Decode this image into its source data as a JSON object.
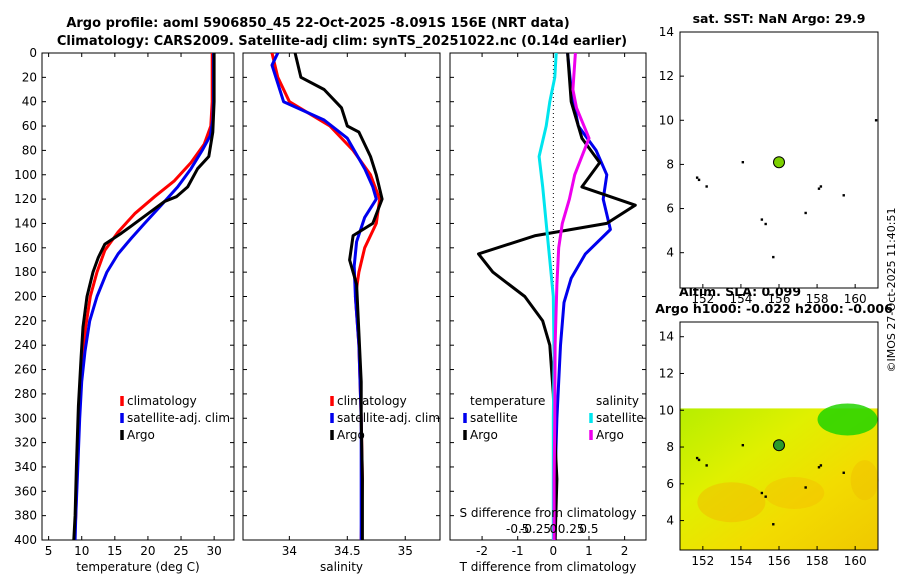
{
  "header": {
    "title_line1": "Argo profile: aoml 5906850_45 22-Oct-2025 -8.091S 156E (NRT data)",
    "title_line2": "Climatology: CARS2009. Satellite-adj clim: synTS_20251022.nc (0.14d earlier)",
    "timestamp": "©IMOS 27-Oct-2025 11:40:51"
  },
  "colors": {
    "climatology": "#ff0000",
    "satellite": "#0000ee",
    "argo": "#000000",
    "sal_satellite": "#00e5ee",
    "sal_argo": "#ee00ee"
  },
  "chart_data": [
    {
      "id": "temp",
      "type": "line",
      "xlabel": "temperature (deg C)",
      "ylabel": "",
      "xlim": [
        4,
        33
      ],
      "ylim": [
        0,
        400
      ],
      "xticks": [
        "5",
        "10",
        "15",
        "20",
        "25",
        "30"
      ],
      "xtick_values": [
        5,
        10,
        15,
        20,
        25,
        30
      ],
      "ytick_values": [
        0,
        20,
        40,
        60,
        80,
        100,
        120,
        140,
        160,
        180,
        200,
        220,
        240,
        260,
        280,
        300,
        320,
        340,
        360,
        380,
        400
      ],
      "yticks": [
        "0",
        "20",
        "40",
        "60",
        "80",
        "100",
        "120",
        "140",
        "160",
        "180",
        "200",
        "220",
        "240",
        "260",
        "280",
        "300",
        "320",
        "340",
        "360",
        "380",
        "400"
      ],
      "legend": [
        "climatology",
        "satellite-adj. clim",
        "Argo"
      ],
      "series": [
        {
          "name": "climatology",
          "color": "#ff0000",
          "points": [
            [
              29.7,
              0
            ],
            [
              29.7,
              40
            ],
            [
              29.5,
              60
            ],
            [
              28.5,
              75
            ],
            [
              26.5,
              90
            ],
            [
              24,
              105
            ],
            [
              21,
              118
            ],
            [
              18,
              132
            ],
            [
              15.5,
              147
            ],
            [
              13.5,
              162
            ],
            [
              12.3,
              180
            ],
            [
              11.3,
              200
            ],
            [
              10.6,
              225
            ],
            [
              10,
              260
            ],
            [
              9.6,
              300
            ],
            [
              9.3,
              340
            ],
            [
              9.1,
              380
            ],
            [
              8.9,
              400
            ]
          ]
        },
        {
          "name": "satellite-adj. clim",
          "color": "#0000ee",
          "points": [
            [
              29.9,
              0
            ],
            [
              29.9,
              40
            ],
            [
              29.8,
              55
            ],
            [
              29.4,
              68
            ],
            [
              28.2,
              80
            ],
            [
              26.5,
              95
            ],
            [
              24.5,
              110
            ],
            [
              22,
              125
            ],
            [
              19.5,
              140
            ],
            [
              17.5,
              152
            ],
            [
              15.5,
              165
            ],
            [
              13.8,
              180
            ],
            [
              12.3,
              200
            ],
            [
              11.2,
              220
            ],
            [
              10.5,
              245
            ],
            [
              10,
              270
            ],
            [
              9.7,
              300
            ],
            [
              9.4,
              340
            ],
            [
              9.1,
              380
            ],
            [
              9,
              400
            ]
          ]
        },
        {
          "name": "Argo",
          "color": "#000000",
          "points": [
            [
              30,
              0
            ],
            [
              30,
              40
            ],
            [
              29.8,
              65
            ],
            [
              29.2,
              85
            ],
            [
              27.5,
              95
            ],
            [
              26,
              110
            ],
            [
              24.3,
              118
            ],
            [
              22.5,
              122
            ],
            [
              20.5,
              130
            ],
            [
              17.5,
              142
            ],
            [
              16,
              148
            ],
            [
              13.5,
              157
            ],
            [
              12.5,
              168
            ],
            [
              11.7,
              180
            ],
            [
              10.8,
              200
            ],
            [
              10.2,
              225
            ],
            [
              9.9,
              250
            ],
            [
              9.5,
              290
            ],
            [
              9.2,
              340
            ],
            [
              9,
              380
            ],
            [
              8.8,
              400
            ]
          ]
        }
      ]
    },
    {
      "id": "sal",
      "type": "line",
      "xlabel": "salinity",
      "ylabel": "",
      "xlim": [
        33.6,
        35.3
      ],
      "ylim": [
        0,
        400
      ],
      "xticks": [
        "34",
        "34.5",
        "35"
      ],
      "xtick_values": [
        34,
        34.5,
        35
      ],
      "legend": [
        "climatology",
        "satellite-adj. clim",
        "Argo"
      ],
      "series": [
        {
          "name": "climatology",
          "color": "#ff0000",
          "points": [
            [
              33.85,
              0
            ],
            [
              33.9,
              20
            ],
            [
              34,
              40
            ],
            [
              34.35,
              60
            ],
            [
              34.55,
              80
            ],
            [
              34.7,
              100
            ],
            [
              34.78,
              120
            ],
            [
              34.75,
              140
            ],
            [
              34.65,
              160
            ],
            [
              34.6,
              180
            ],
            [
              34.57,
              200
            ],
            [
              34.6,
              240
            ],
            [
              34.62,
              300
            ],
            [
              34.63,
              350
            ],
            [
              34.62,
              400
            ]
          ]
        },
        {
          "name": "satellite-adj. clim",
          "color": "#0000ee",
          "points": [
            [
              33.9,
              0
            ],
            [
              33.85,
              10
            ],
            [
              33.95,
              40
            ],
            [
              34.3,
              55
            ],
            [
              34.5,
              70
            ],
            [
              34.65,
              95
            ],
            [
              34.72,
              110
            ],
            [
              34.75,
              120
            ],
            [
              34.65,
              135
            ],
            [
              34.58,
              155
            ],
            [
              34.56,
              175
            ],
            [
              34.57,
              200
            ],
            [
              34.6,
              240
            ],
            [
              34.62,
              300
            ],
            [
              34.62,
              350
            ],
            [
              34.62,
              400
            ]
          ]
        },
        {
          "name": "Argo",
          "color": "#000000",
          "points": [
            [
              34.05,
              0
            ],
            [
              34.1,
              20
            ],
            [
              34.3,
              30
            ],
            [
              34.45,
              45
            ],
            [
              34.5,
              60
            ],
            [
              34.6,
              65
            ],
            [
              34.7,
              85
            ],
            [
              34.75,
              100
            ],
            [
              34.8,
              120
            ],
            [
              34.72,
              140
            ],
            [
              34.55,
              150
            ],
            [
              34.52,
              170
            ],
            [
              34.58,
              190
            ],
            [
              34.6,
              230
            ],
            [
              34.62,
              270
            ],
            [
              34.62,
              300
            ],
            [
              34.63,
              350
            ],
            [
              34.63,
              400
            ]
          ]
        }
      ]
    },
    {
      "id": "diff",
      "type": "line",
      "xlabel": "T difference from climatology",
      "ylabel": "",
      "xlim": [
        -2.9,
        2.6
      ],
      "ylim": [
        0,
        400
      ],
      "xticks": [
        "-2",
        "-1",
        "0",
        "1",
        "2"
      ],
      "xtick_values": [
        -2,
        -1,
        0,
        1,
        2
      ],
      "top_xlabel": "S difference from climatology",
      "top_xticks": [
        "-0.5",
        "-0.25",
        "0",
        "0.25",
        "0.5"
      ],
      "top_xtick_values": [
        -1,
        -0.5,
        0,
        0.5,
        1
      ],
      "legend_temperature_title": "temperature",
      "legend_salinity_title": "salinity",
      "legend": [
        "satellite",
        "Argo",
        "satellite",
        "Argo"
      ],
      "series": [
        {
          "name": "temperature satellite",
          "color": "#0000ee",
          "points": [
            [
              0.4,
              0
            ],
            [
              0.5,
              30
            ],
            [
              0.7,
              60
            ],
            [
              1.2,
              80
            ],
            [
              1.5,
              100
            ],
            [
              1.4,
              120
            ],
            [
              1.6,
              145
            ],
            [
              0.9,
              165
            ],
            [
              0.5,
              185
            ],
            [
              0.3,
              205
            ],
            [
              0.2,
              240
            ],
            [
              0.1,
              300
            ],
            [
              0.05,
              350
            ],
            [
              0.05,
              400
            ]
          ]
        },
        {
          "name": "temperature Argo",
          "color": "#000000",
          "points": [
            [
              0.4,
              0
            ],
            [
              0.5,
              40
            ],
            [
              0.8,
              70
            ],
            [
              1.3,
              90
            ],
            [
              0.8,
              110
            ],
            [
              2.3,
              125
            ],
            [
              1.5,
              140
            ],
            [
              -0.5,
              150
            ],
            [
              -2.1,
              165
            ],
            [
              -1.7,
              180
            ],
            [
              -0.8,
              200
            ],
            [
              -0.3,
              220
            ],
            [
              -0.1,
              240
            ],
            [
              0,
              280
            ],
            [
              0.05,
              320
            ],
            [
              0.1,
              350
            ],
            [
              0.05,
              400
            ]
          ]
        },
        {
          "name": "salinity satellite",
          "color": "#00e5ee",
          "points": [
            [
              0.08,
              0
            ],
            [
              0.04,
              20
            ],
            [
              -0.1,
              40
            ],
            [
              -0.2,
              60
            ],
            [
              -0.4,
              85
            ],
            [
              -0.3,
              110
            ],
            [
              -0.2,
              140
            ],
            [
              -0.1,
              170
            ],
            [
              0.0,
              200
            ],
            [
              0.02,
              250
            ],
            [
              0.0,
              300
            ],
            [
              0.0,
              350
            ],
            [
              0.0,
              400
            ]
          ]
        },
        {
          "name": "salinity Argo",
          "color": "#ee00ee",
          "points": [
            [
              0.62,
              0
            ],
            [
              0.55,
              30
            ],
            [
              0.65,
              45
            ],
            [
              1.0,
              70
            ],
            [
              0.6,
              100
            ],
            [
              0.45,
              120
            ],
            [
              0.25,
              140
            ],
            [
              0.15,
              160
            ],
            [
              0.1,
              190
            ],
            [
              0.05,
              240
            ],
            [
              0.04,
              300
            ],
            [
              0.02,
              350
            ],
            [
              0.02,
              400
            ]
          ]
        }
      ]
    },
    {
      "id": "sst_map",
      "type": "scatter",
      "title": "sat. SST: NaN Argo: 29.9",
      "xlim": [
        150.8,
        161.2
      ],
      "ylim": [
        2.4,
        14
      ],
      "xticks": [
        "152",
        "154",
        "156",
        "158",
        "160"
      ],
      "xtick_values": [
        152,
        154,
        156,
        158,
        160
      ],
      "yticks": [
        "4",
        "6",
        "8",
        "10",
        "12",
        "14"
      ],
      "ytick_values": [
        4,
        6,
        8,
        10,
        12,
        14
      ],
      "argo_position": [
        156,
        8.1
      ],
      "island_points": [
        [
          151.7,
          7.4
        ],
        [
          151.8,
          7.3
        ],
        [
          152.2,
          7.0
        ],
        [
          154.1,
          8.1
        ],
        [
          155.3,
          5.3
        ],
        [
          155.1,
          5.5
        ],
        [
          155.7,
          3.8
        ],
        [
          157.4,
          5.8
        ],
        [
          158.1,
          6.9
        ],
        [
          158.2,
          7.0
        ],
        [
          159.4,
          6.6
        ],
        [
          161.1,
          10.0
        ]
      ]
    },
    {
      "id": "sla_map",
      "type": "heatmap",
      "title_line1": "Altim. SLA: 0.099",
      "title_line2": "Argo h1000: -0.022 h2000: -0.006",
      "xlim": [
        150.8,
        161.2
      ],
      "ylim": [
        2.4,
        14.8
      ],
      "data_top": 10.1,
      "xticks": [
        "152",
        "154",
        "156",
        "158",
        "160"
      ],
      "xtick_values": [
        152,
        154,
        156,
        158,
        160
      ],
      "yticks": [
        "4",
        "6",
        "8",
        "10",
        "12",
        "14"
      ],
      "ytick_values": [
        4,
        6,
        8,
        10,
        12,
        14
      ],
      "argo_position": [
        156,
        8.1
      ],
      "island_points": [
        [
          151.7,
          7.4
        ],
        [
          151.8,
          7.3
        ],
        [
          152.2,
          7.0
        ],
        [
          154.1,
          8.1
        ],
        [
          155.3,
          5.3
        ],
        [
          155.1,
          5.5
        ],
        [
          155.7,
          3.8
        ],
        [
          157.4,
          5.8
        ],
        [
          158.1,
          6.9
        ],
        [
          158.2,
          7.0
        ],
        [
          159.4,
          6.6
        ]
      ]
    }
  ]
}
